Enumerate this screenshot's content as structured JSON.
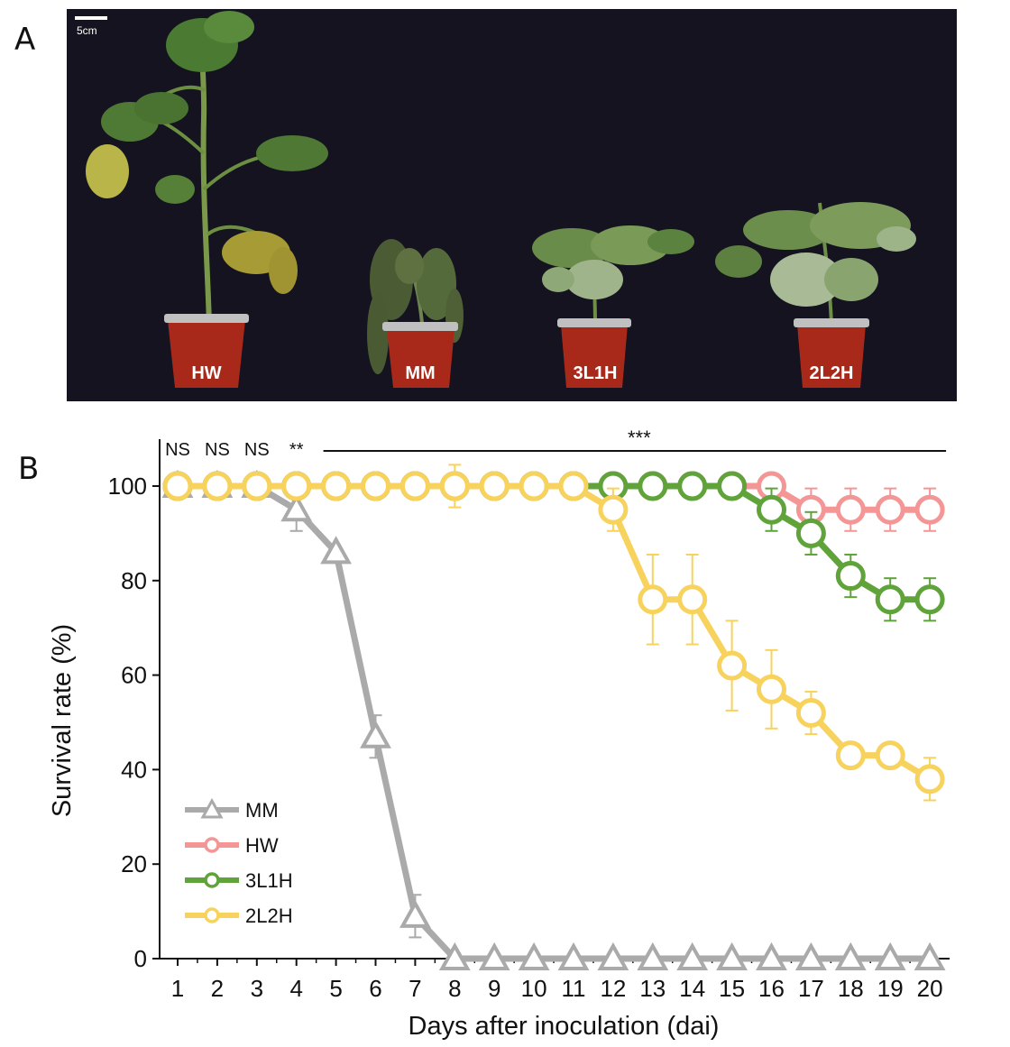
{
  "panels": {
    "a": "A",
    "b": "B"
  },
  "photo": {
    "scale_bar_label": "5cm",
    "plants": [
      {
        "label": "HW"
      },
      {
        "label": "MM"
      },
      {
        "label": "3L1H"
      },
      {
        "label": "2L2H"
      }
    ],
    "background_color": "#14131f",
    "pot_color": "#a8291a"
  },
  "chart_data": {
    "type": "line",
    "xlabel": "Days after inoculation (dai)",
    "ylabel": "Survival rate (%)",
    "x": [
      1,
      2,
      3,
      4,
      5,
      6,
      7,
      8,
      9,
      10,
      11,
      12,
      13,
      14,
      15,
      16,
      17,
      18,
      19,
      20
    ],
    "ylim": [
      0,
      110
    ],
    "yticks": [
      0,
      20,
      40,
      60,
      80,
      100
    ],
    "legend_position": "bottom-left",
    "significance": [
      {
        "x": 1,
        "label": "NS"
      },
      {
        "x": 2,
        "label": "NS"
      },
      {
        "x": 3,
        "label": "NS"
      },
      {
        "x": 4,
        "label": "**"
      },
      {
        "x_range": [
          5,
          20
        ],
        "label": "***"
      }
    ],
    "series": [
      {
        "name": "MM",
        "marker": "triangle",
        "color": "#aaaaaa",
        "values": [
          100,
          100,
          100,
          95,
          86,
          47,
          9,
          0,
          0,
          0,
          0,
          0,
          0,
          0,
          0,
          0,
          0,
          0,
          0,
          0
        ],
        "errors": [
          0,
          0,
          0,
          4.5,
          0,
          4.5,
          4.5,
          0,
          0,
          0,
          0,
          0,
          0,
          0,
          0,
          0,
          0,
          0,
          0,
          0
        ]
      },
      {
        "name": "HW",
        "marker": "circle",
        "color": "#f49696",
        "values": [
          100,
          100,
          100,
          100,
          100,
          100,
          100,
          100,
          100,
          100,
          100,
          100,
          100,
          100,
          100,
          100,
          95,
          95,
          95,
          95
        ],
        "errors": [
          0,
          0,
          0,
          0,
          0,
          0,
          0,
          0,
          0,
          0,
          0,
          0,
          0,
          0,
          0,
          0,
          4.5,
          4.5,
          4.5,
          4.5
        ]
      },
      {
        "name": "3L1H",
        "marker": "circle",
        "color": "#5fa33a",
        "values": [
          100,
          100,
          100,
          100,
          100,
          100,
          100,
          100,
          100,
          100,
          100,
          100,
          100,
          100,
          100,
          95,
          90,
          81,
          76,
          76
        ],
        "errors": [
          0,
          0,
          0,
          0,
          0,
          0,
          0,
          0,
          0,
          0,
          0,
          0,
          0,
          0,
          0,
          4.5,
          4.5,
          4.5,
          4.5,
          4.5
        ]
      },
      {
        "name": "2L2H",
        "marker": "circle",
        "color": "#f7d25c",
        "values": [
          100,
          100,
          100,
          100,
          100,
          100,
          100,
          100,
          100,
          100,
          100,
          95,
          76,
          76,
          62,
          57,
          52,
          43,
          43,
          38
        ],
        "errors": [
          0,
          0,
          0,
          0,
          0,
          0,
          0,
          4.5,
          0,
          0,
          0,
          4.5,
          9.5,
          9.5,
          9.5,
          8.3,
          4.5,
          0,
          0,
          4.5
        ]
      }
    ]
  }
}
